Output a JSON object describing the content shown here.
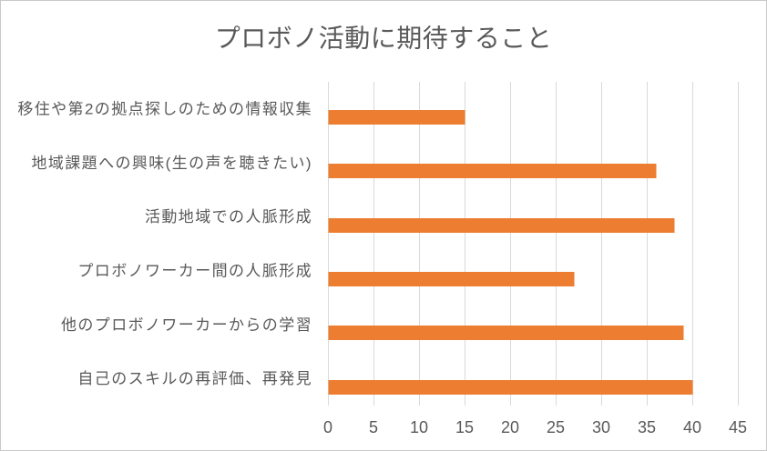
{
  "chart_data": {
    "type": "bar",
    "orientation": "horizontal",
    "title": "プロボノ活動に期待すること",
    "categories": [
      "移住や第2の拠点探しのための情報収集",
      "地域課題への興味(生の声を聴きたい)",
      "活動地域での人脈形成",
      "プロボノワーカー間の人脈形成",
      "他のプロボノワーカーからの学習",
      "自己のスキルの再評価、再発見"
    ],
    "values": [
      15,
      36,
      38,
      27,
      39,
      40
    ],
    "xlim": [
      0,
      45
    ],
    "x_ticks": [
      0,
      5,
      10,
      15,
      20,
      25,
      30,
      35,
      40,
      45
    ],
    "grid": "vertical",
    "legend": "none",
    "bar_color": "#ed7d31"
  }
}
